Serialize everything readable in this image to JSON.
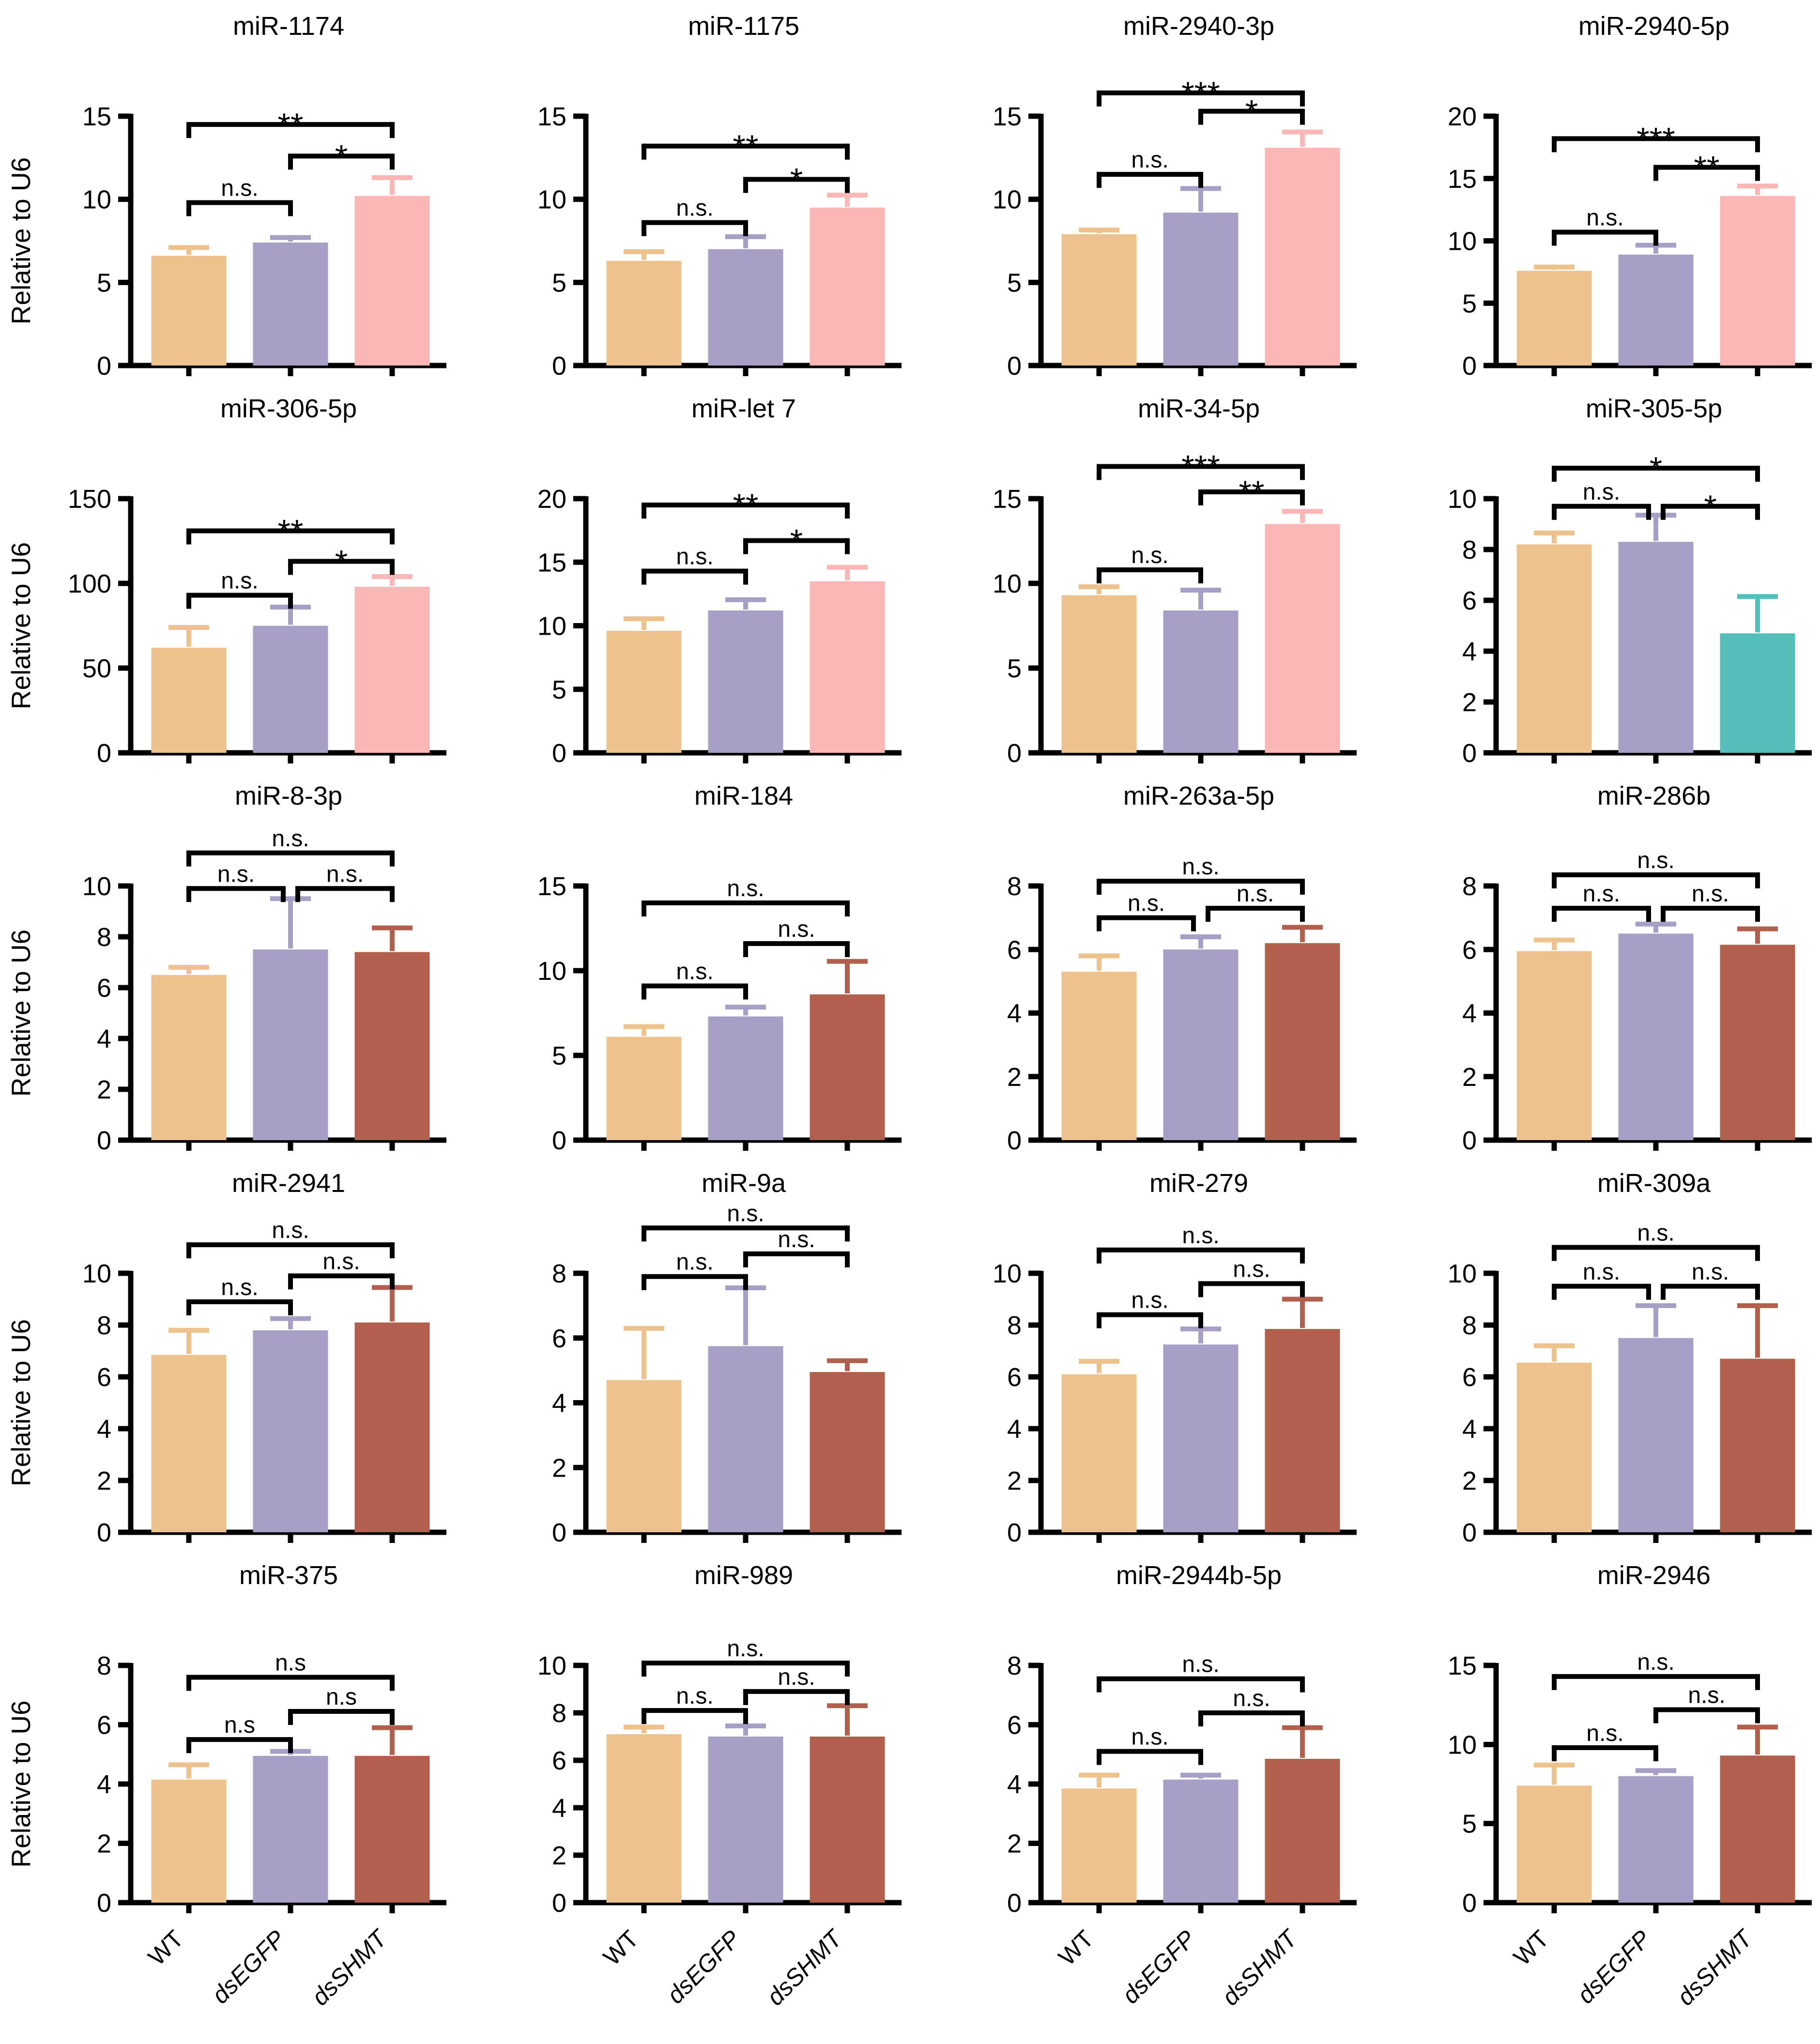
{
  "figure": {
    "ylabel": "Relative to U6",
    "categories": [
      "WT",
      "dsEGFP",
      "dsSHMT"
    ],
    "categories_italic": [
      false,
      true,
      true
    ],
    "palette": {
      "wt": "#edc28c",
      "dsegfp": "#a89fc6",
      "shmt_up": "#fbb6b6",
      "shmt_down": "#54bebb",
      "shmt_ns": "#b0604d",
      "axis": "#000000"
    }
  },
  "chart_data": [
    {
      "type": "bar",
      "title": "miR-1174",
      "ylim": [
        0,
        15
      ],
      "yticks": [
        0,
        5,
        10,
        15
      ],
      "values": [
        6.6,
        7.4,
        10.2
      ],
      "errors": [
        0.5,
        0.3,
        1.1
      ],
      "bar_colors": [
        "wt",
        "dsegfp",
        "shmt_up"
      ],
      "significance": [
        {
          "pair": [
            0,
            1
          ],
          "y": 9.8,
          "label": "n.s."
        },
        {
          "pair": [
            1,
            2
          ],
          "y": 12.6,
          "label": "*"
        },
        {
          "pair": [
            0,
            2
          ],
          "y": 14.5,
          "label": "**"
        }
      ],
      "show_ylabel": true,
      "show_xlabels": false
    },
    {
      "type": "bar",
      "title": "miR-1175",
      "ylim": [
        0,
        15
      ],
      "yticks": [
        0,
        5,
        10,
        15
      ],
      "values": [
        6.3,
        7.0,
        9.5
      ],
      "errors": [
        0.55,
        0.75,
        0.75
      ],
      "bar_colors": [
        "wt",
        "dsegfp",
        "shmt_up"
      ],
      "significance": [
        {
          "pair": [
            0,
            1
          ],
          "y": 8.6,
          "label": "n.s."
        },
        {
          "pair": [
            1,
            2
          ],
          "y": 11.2,
          "label": "*"
        },
        {
          "pair": [
            0,
            2
          ],
          "y": 13.2,
          "label": "**"
        }
      ],
      "show_ylabel": false,
      "show_xlabels": false
    },
    {
      "type": "bar",
      "title": "miR-2940-3p",
      "ylim": [
        0,
        15
      ],
      "yticks": [
        0,
        5,
        10,
        15
      ],
      "values": [
        7.9,
        9.2,
        13.1
      ],
      "errors": [
        0.25,
        1.45,
        0.95
      ],
      "bar_colors": [
        "wt",
        "dsegfp",
        "shmt_up"
      ],
      "significance": [
        {
          "pair": [
            0,
            1
          ],
          "y": 11.5,
          "label": "n.s."
        },
        {
          "pair": [
            1,
            2
          ],
          "y": 15.3,
          "label": "*"
        },
        {
          "pair": [
            0,
            2
          ],
          "y": 16.4,
          "label": "***"
        }
      ],
      "show_ylabel": false,
      "show_xlabels": false
    },
    {
      "type": "bar",
      "title": "miR-2940-5p",
      "ylim": [
        0,
        20
      ],
      "yticks": [
        0,
        5,
        10,
        15,
        20
      ],
      "values": [
        7.6,
        8.9,
        13.6
      ],
      "errors": [
        0.3,
        0.75,
        0.8
      ],
      "bar_colors": [
        "wt",
        "dsegfp",
        "shmt_up"
      ],
      "significance": [
        {
          "pair": [
            0,
            1
          ],
          "y": 10.7,
          "label": "n.s."
        },
        {
          "pair": [
            1,
            2
          ],
          "y": 15.9,
          "label": "**"
        },
        {
          "pair": [
            0,
            2
          ],
          "y": 18.2,
          "label": "***"
        }
      ],
      "show_ylabel": false,
      "show_xlabels": false
    },
    {
      "type": "bar",
      "title": "miR-306-5p",
      "ylim": [
        0,
        150
      ],
      "yticks": [
        0,
        50,
        100,
        150
      ],
      "values": [
        62,
        75,
        98
      ],
      "errors": [
        12,
        11,
        6
      ],
      "bar_colors": [
        "wt",
        "dsegfp",
        "shmt_up"
      ],
      "significance": [
        {
          "pair": [
            0,
            1
          ],
          "y": 93,
          "label": "n.s."
        },
        {
          "pair": [
            1,
            2
          ],
          "y": 113,
          "label": "*"
        },
        {
          "pair": [
            0,
            2
          ],
          "y": 131,
          "label": "**"
        }
      ],
      "show_ylabel": true,
      "show_xlabels": false
    },
    {
      "type": "bar",
      "title": "miR-let 7",
      "ylim": [
        0,
        20
      ],
      "yticks": [
        0,
        5,
        10,
        15,
        20
      ],
      "values": [
        9.6,
        11.2,
        13.5
      ],
      "errors": [
        0.95,
        0.85,
        1.1
      ],
      "bar_colors": [
        "wt",
        "dsegfp",
        "shmt_up"
      ],
      "significance": [
        {
          "pair": [
            0,
            1
          ],
          "y": 14.3,
          "label": "n.s."
        },
        {
          "pair": [
            1,
            2
          ],
          "y": 16.7,
          "label": "*"
        },
        {
          "pair": [
            0,
            2
          ],
          "y": 19.5,
          "label": "**"
        }
      ],
      "show_ylabel": false,
      "show_xlabels": false
    },
    {
      "type": "bar",
      "title": "miR-34-5p",
      "ylim": [
        0,
        15
      ],
      "yticks": [
        0,
        5,
        10,
        15
      ],
      "values": [
        9.3,
        8.4,
        13.5
      ],
      "errors": [
        0.5,
        1.2,
        0.75
      ],
      "bar_colors": [
        "wt",
        "dsegfp",
        "shmt_up"
      ],
      "significance": [
        {
          "pair": [
            0,
            1
          ],
          "y": 10.8,
          "label": "n.s."
        },
        {
          "pair": [
            1,
            2
          ],
          "y": 15.4,
          "label": "**"
        },
        {
          "pair": [
            0,
            2
          ],
          "y": 16.9,
          "label": "***"
        }
      ],
      "show_ylabel": false,
      "show_xlabels": false
    },
    {
      "type": "bar",
      "title": "miR-305-5p",
      "ylim": [
        0,
        10
      ],
      "yticks": [
        0,
        2,
        4,
        6,
        8,
        10
      ],
      "values": [
        8.2,
        8.3,
        4.7
      ],
      "errors": [
        0.45,
        1.05,
        1.45
      ],
      "bar_colors": [
        "wt",
        "dsegfp",
        "shmt_down"
      ],
      "significance": [
        {
          "pair": [
            0,
            1
          ],
          "y": 9.7,
          "label": "n.s."
        },
        {
          "pair": [
            1,
            2
          ],
          "y": 9.7,
          "label": "*"
        },
        {
          "pair": [
            0,
            2
          ],
          "y": 11.2,
          "label": "*"
        }
      ],
      "show_ylabel": false,
      "show_xlabels": false
    },
    {
      "type": "bar",
      "title": "miR-8-3p",
      "ylim": [
        0,
        10
      ],
      "yticks": [
        0,
        2,
        4,
        6,
        8,
        10
      ],
      "values": [
        6.5,
        7.5,
        7.4
      ],
      "errors": [
        0.3,
        2.0,
        0.95
      ],
      "bar_colors": [
        "wt",
        "dsegfp",
        "shmt_ns"
      ],
      "significance": [
        {
          "pair": [
            0,
            1
          ],
          "y": 9.9,
          "label": "n.s."
        },
        {
          "pair": [
            1,
            2
          ],
          "y": 9.9,
          "label": "n.s."
        },
        {
          "pair": [
            0,
            2
          ],
          "y": 11.3,
          "label": "n.s."
        }
      ],
      "show_ylabel": true,
      "show_xlabels": false
    },
    {
      "type": "bar",
      "title": "miR-184",
      "ylim": [
        0,
        15
      ],
      "yticks": [
        0,
        5,
        10,
        15
      ],
      "values": [
        6.1,
        7.3,
        8.6
      ],
      "errors": [
        0.6,
        0.55,
        1.95
      ],
      "bar_colors": [
        "wt",
        "dsegfp",
        "shmt_ns"
      ],
      "significance": [
        {
          "pair": [
            0,
            1
          ],
          "y": 9.1,
          "label": "n.s."
        },
        {
          "pair": [
            1,
            2
          ],
          "y": 11.6,
          "label": "n.s."
        },
        {
          "pair": [
            0,
            2
          ],
          "y": 14.0,
          "label": "n.s."
        }
      ],
      "show_ylabel": false,
      "show_xlabels": false
    },
    {
      "type": "bar",
      "title": "miR-263a-5p",
      "ylim": [
        0,
        8
      ],
      "yticks": [
        0,
        2,
        4,
        6,
        8
      ],
      "values": [
        5.3,
        6.0,
        6.2
      ],
      "errors": [
        0.5,
        0.4,
        0.5
      ],
      "bar_colors": [
        "wt",
        "dsegfp",
        "shmt_ns"
      ],
      "significance": [
        {
          "pair": [
            0,
            1
          ],
          "y": 7.0,
          "label": "n.s."
        },
        {
          "pair": [
            1,
            2
          ],
          "y": 7.3,
          "label": "n.s."
        },
        {
          "pair": [
            0,
            2
          ],
          "y": 8.15,
          "label": "n.s."
        }
      ],
      "show_ylabel": false,
      "show_xlabels": false
    },
    {
      "type": "bar",
      "title": "miR-286b",
      "ylim": [
        0,
        8
      ],
      "yticks": [
        0,
        2,
        4,
        6,
        8
      ],
      "values": [
        5.95,
        6.5,
        6.15
      ],
      "errors": [
        0.35,
        0.3,
        0.5
      ],
      "bar_colors": [
        "wt",
        "dsegfp",
        "shmt_ns"
      ],
      "significance": [
        {
          "pair": [
            0,
            1
          ],
          "y": 7.3,
          "label": "n.s."
        },
        {
          "pair": [
            1,
            2
          ],
          "y": 7.3,
          "label": "n.s."
        },
        {
          "pair": [
            0,
            2
          ],
          "y": 8.35,
          "label": "n.s."
        }
      ],
      "show_ylabel": false,
      "show_xlabels": false
    },
    {
      "type": "bar",
      "title": "miR-2941",
      "ylim": [
        0,
        10
      ],
      "yticks": [
        0,
        2,
        4,
        6,
        8,
        10
      ],
      "values": [
        6.85,
        7.8,
        8.1
      ],
      "errors": [
        0.95,
        0.45,
        1.35
      ],
      "bar_colors": [
        "wt",
        "dsegfp",
        "shmt_ns"
      ],
      "significance": [
        {
          "pair": [
            0,
            1
          ],
          "y": 8.9,
          "label": "n.s."
        },
        {
          "pair": [
            1,
            2
          ],
          "y": 9.9,
          "label": "n.s."
        },
        {
          "pair": [
            0,
            2
          ],
          "y": 11.1,
          "label": "n.s."
        }
      ],
      "show_ylabel": true,
      "show_xlabels": false
    },
    {
      "type": "bar",
      "title": "miR-9a",
      "ylim": [
        0,
        8
      ],
      "yticks": [
        0,
        2,
        4,
        6,
        8
      ],
      "values": [
        4.7,
        5.75,
        4.95
      ],
      "errors": [
        1.6,
        1.8,
        0.35
      ],
      "bar_colors": [
        "wt",
        "dsegfp",
        "shmt_ns"
      ],
      "significance": [
        {
          "pair": [
            0,
            1
          ],
          "y": 7.9,
          "label": "n.s."
        },
        {
          "pair": [
            1,
            2
          ],
          "y": 8.6,
          "label": "n.s."
        },
        {
          "pair": [
            0,
            2
          ],
          "y": 9.4,
          "label": "n.s."
        }
      ],
      "show_ylabel": false,
      "show_xlabels": false
    },
    {
      "type": "bar",
      "title": "miR-279",
      "ylim": [
        0,
        10
      ],
      "yticks": [
        0,
        2,
        4,
        6,
        8,
        10
      ],
      "values": [
        6.1,
        7.25,
        7.85
      ],
      "errors": [
        0.5,
        0.6,
        1.15
      ],
      "bar_colors": [
        "wt",
        "dsegfp",
        "shmt_ns"
      ],
      "significance": [
        {
          "pair": [
            0,
            1
          ],
          "y": 8.4,
          "label": "n.s."
        },
        {
          "pair": [
            1,
            2
          ],
          "y": 9.6,
          "label": "n.s."
        },
        {
          "pair": [
            0,
            2
          ],
          "y": 10.9,
          "label": "n.s."
        }
      ],
      "show_ylabel": false,
      "show_xlabels": false
    },
    {
      "type": "bar",
      "title": "miR-309a",
      "ylim": [
        0,
        10
      ],
      "yticks": [
        0,
        2,
        4,
        6,
        8,
        10
      ],
      "values": [
        6.55,
        7.5,
        6.7
      ],
      "errors": [
        0.65,
        1.25,
        2.05
      ],
      "bar_colors": [
        "wt",
        "dsegfp",
        "shmt_ns"
      ],
      "significance": [
        {
          "pair": [
            0,
            1
          ],
          "y": 9.5,
          "label": "n.s."
        },
        {
          "pair": [
            1,
            2
          ],
          "y": 9.5,
          "label": "n.s."
        },
        {
          "pair": [
            0,
            2
          ],
          "y": 11.0,
          "label": "n.s."
        }
      ],
      "show_ylabel": false,
      "show_xlabels": false
    },
    {
      "type": "bar",
      "title": "miR-375",
      "ylim": [
        0,
        8
      ],
      "yticks": [
        0,
        2,
        4,
        6,
        8
      ],
      "values": [
        4.15,
        4.95,
        4.95
      ],
      "errors": [
        0.5,
        0.15,
        0.95
      ],
      "bar_colors": [
        "wt",
        "dsegfp",
        "shmt_ns"
      ],
      "significance": [
        {
          "pair": [
            0,
            1
          ],
          "y": 5.5,
          "label": "n.s"
        },
        {
          "pair": [
            1,
            2
          ],
          "y": 6.45,
          "label": "n.s"
        },
        {
          "pair": [
            0,
            2
          ],
          "y": 7.6,
          "label": "n.s"
        }
      ],
      "show_ylabel": true,
      "show_xlabels": true
    },
    {
      "type": "bar",
      "title": "miR-989",
      "ylim": [
        0,
        10
      ],
      "yticks": [
        0,
        2,
        4,
        6,
        8,
        10
      ],
      "values": [
        7.1,
        7.0,
        7.0
      ],
      "errors": [
        0.3,
        0.45,
        1.3
      ],
      "bar_colors": [
        "wt",
        "dsegfp",
        "shmt_ns"
      ],
      "significance": [
        {
          "pair": [
            0,
            1
          ],
          "y": 8.1,
          "label": "n.s."
        },
        {
          "pair": [
            1,
            2
          ],
          "y": 8.9,
          "label": "n.s."
        },
        {
          "pair": [
            0,
            2
          ],
          "y": 10.1,
          "label": "n.s."
        }
      ],
      "show_ylabel": false,
      "show_xlabels": true
    },
    {
      "type": "bar",
      "title": "miR-2944b-5p",
      "ylim": [
        0,
        8
      ],
      "yticks": [
        0,
        2,
        4,
        6,
        8
      ],
      "values": [
        3.85,
        4.15,
        4.85
      ],
      "errors": [
        0.45,
        0.15,
        1.05
      ],
      "bar_colors": [
        "wt",
        "dsegfp",
        "shmt_ns"
      ],
      "significance": [
        {
          "pair": [
            0,
            1
          ],
          "y": 5.1,
          "label": "n.s."
        },
        {
          "pair": [
            1,
            2
          ],
          "y": 6.4,
          "label": "n.s."
        },
        {
          "pair": [
            0,
            2
          ],
          "y": 7.55,
          "label": "n.s."
        }
      ],
      "show_ylabel": false,
      "show_xlabels": true
    },
    {
      "type": "bar",
      "title": "miR-2946",
      "ylim": [
        0,
        15
      ],
      "yticks": [
        0,
        5,
        10,
        15
      ],
      "values": [
        7.4,
        8.0,
        9.3
      ],
      "errors": [
        1.3,
        0.35,
        1.8
      ],
      "bar_colors": [
        "wt",
        "dsegfp",
        "shmt_ns"
      ],
      "significance": [
        {
          "pair": [
            0,
            1
          ],
          "y": 9.8,
          "label": "n.s."
        },
        {
          "pair": [
            1,
            2
          ],
          "y": 12.2,
          "label": "n.s."
        },
        {
          "pair": [
            0,
            2
          ],
          "y": 14.3,
          "label": "n.s."
        }
      ],
      "show_ylabel": false,
      "show_xlabels": true
    }
  ]
}
